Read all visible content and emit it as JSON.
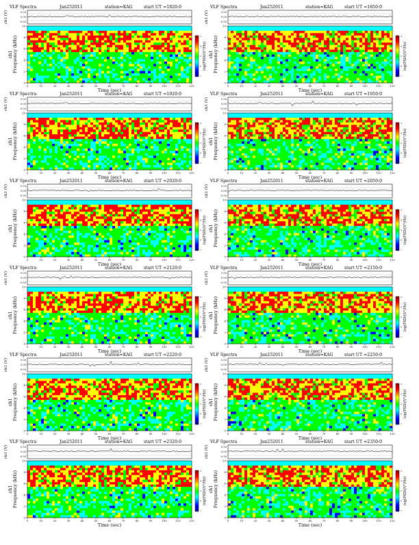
{
  "page": {
    "panel_type": "VLF Spectra",
    "date": "Jan252011",
    "station_text": "station=KAG",
    "ut_prefix": "start  UT =",
    "channel_label": "ch1 (V)",
    "amp_ticks": [
      "0.50",
      "0.00",
      "-0.50"
    ],
    "ylabel_top": "ch1",
    "ylabel_bottom": "Frequency (kHz)",
    "xlabel": "Time (sec)",
    "colorbar_label": "log(PSD)(V²/Hz)",
    "colorbar_ticks": [
      "-3",
      "-4",
      "-5",
      "-6",
      "-7"
    ],
    "panels": [
      {
        "ut": "1820:0"
      },
      {
        "ut": "1850:0"
      },
      {
        "ut": "1920:0"
      },
      {
        "ut": "1950:0"
      },
      {
        "ut": "2020:0"
      },
      {
        "ut": "2050:0"
      },
      {
        "ut": "2120:0"
      },
      {
        "ut": "2150:0"
      },
      {
        "ut": "2220:0"
      },
      {
        "ut": "2250:0"
      },
      {
        "ut": "2320:0"
      },
      {
        "ut": "2350:0"
      }
    ]
  },
  "chart_data": {
    "type": "heatmap",
    "layout": "6 rows × 2 columns of spectrogram panels",
    "x_axis": {
      "label": "Time (sec)",
      "range": [
        0,
        120
      ],
      "ticks": [
        0,
        10,
        20,
        30,
        40,
        50,
        60,
        70,
        80,
        90,
        100,
        110,
        120
      ]
    },
    "y_axis": {
      "label": "Frequency (kHz)",
      "range": [
        0,
        10
      ],
      "ticks": [
        0,
        2,
        4,
        6,
        8,
        10
      ]
    },
    "amplitude_axis": {
      "label": "ch1 (V)",
      "ticks": [
        0.5,
        0.0,
        -0.5
      ]
    },
    "colorbar": {
      "label": "log(PSD)(V²/Hz)",
      "range": [
        -7,
        -3
      ],
      "colormap": "jet",
      "colors": [
        "#00008b",
        "#0000ff",
        "#00ffff",
        "#00ff00",
        "#ffff00",
        "#ff0000",
        "#8b0000"
      ]
    },
    "description_of_structure": {
      "cyan_band_kHz": [
        9.3,
        10
      ],
      "red_yellow_band_kHz": [
        5.5,
        9
      ],
      "green_cyan_background_kHz": [
        0,
        5.5
      ]
    }
  }
}
